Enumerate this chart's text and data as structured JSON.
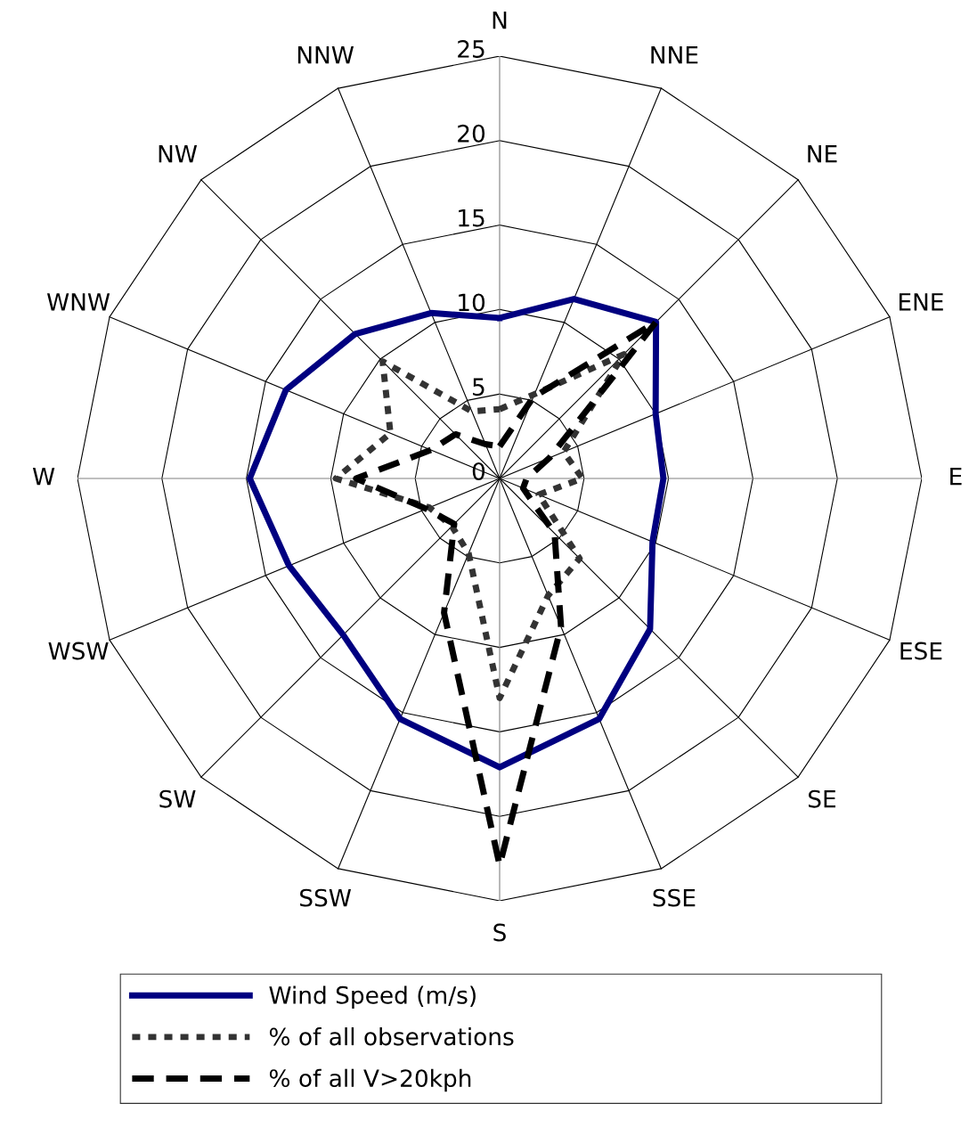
{
  "chart_data": {
    "type": "radar",
    "categories": [
      "N",
      "NNE",
      "NE",
      "ENE",
      "E",
      "ESE",
      "SE",
      "SSE",
      "S",
      "SSW",
      "SW",
      "WSW",
      "W",
      "WNW",
      "NW",
      "NNW"
    ],
    "ylim": [
      0,
      25
    ],
    "yticks": [
      0,
      5,
      10,
      15,
      20,
      25
    ],
    "grid": true,
    "legend": "bottom",
    "marker": "none",
    "series": [
      {
        "name": "Wind Speed (m/s)",
        "color": "#000080",
        "line_style": "solid",
        "values": [
          9.5,
          11.5,
          13.1,
          10.0,
          9.7,
          9.8,
          12.6,
          15.4,
          17.1,
          15.4,
          13.1,
          13.5,
          14.8,
          13.7,
          12.1,
          10.6
        ]
      },
      {
        "name": "% of all observations",
        "color": "#333333",
        "line_style": "dotted",
        "values": [
          4.1,
          5.4,
          10.4,
          4.1,
          4.9,
          2.5,
          6.7,
          7.5,
          13.0,
          4.8,
          4.0,
          4.5,
          9.7,
          7.0,
          9.8,
          4.3
        ]
      },
      {
        "name": "% of all V>20kph",
        "color": "#000000",
        "line_style": "dashed",
        "values": [
          1.9,
          5.2,
          13.1,
          3.2,
          1.6,
          1.5,
          4.6,
          9.5,
          22.9,
          8.6,
          3.8,
          4.7,
          8.5,
          4.4,
          3.7,
          2.2
        ]
      }
    ]
  }
}
